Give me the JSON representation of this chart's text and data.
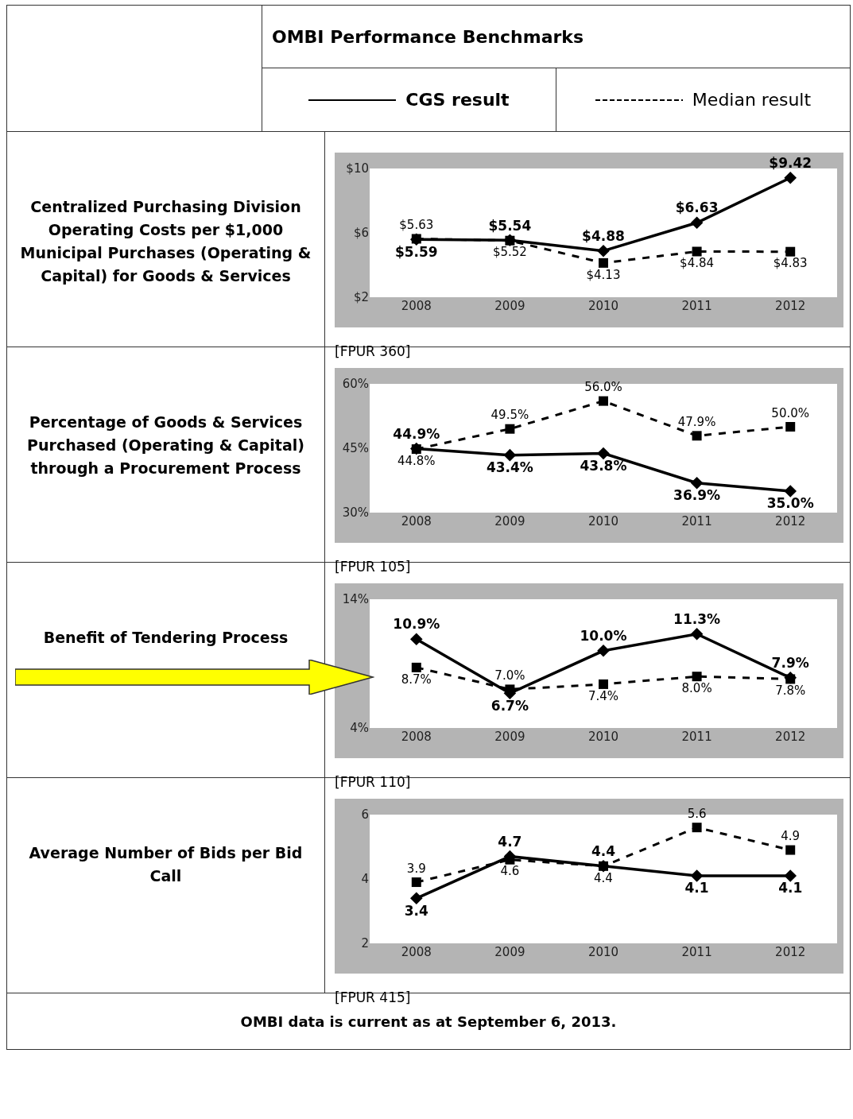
{
  "chart_data": [
    {
      "type": "line",
      "title": "Centralized Purchasing Division Operating Costs per $1,000 Municipal Purchases (Operating & Capital) for Goods & Services",
      "categories": [
        "2008",
        "2009",
        "2010",
        "2011",
        "2012"
      ],
      "series": [
        {
          "name": "CGS result",
          "color": "#000000",
          "line_style": "solid",
          "marker": "diamond",
          "values": [
            5.59,
            5.54,
            4.88,
            6.63,
            9.42
          ],
          "value_labels": [
            "$5.59",
            "$5.54",
            "$4.88",
            "$6.63",
            "$9.42"
          ]
        },
        {
          "name": "Median result",
          "color": "#000000",
          "line_style": "dashed",
          "marker": "square",
          "values": [
            5.63,
            5.52,
            4.13,
            4.84,
            4.83
          ],
          "value_labels": [
            "$5.63",
            "$5.52",
            "$4.13",
            "$4.84",
            "$4.83"
          ]
        }
      ],
      "ylim": [
        2,
        10
      ],
      "yticks": [
        {
          "value": 2,
          "label": "$2"
        },
        {
          "value": 6,
          "label": "$6"
        },
        {
          "value": 10,
          "label": "$10"
        }
      ],
      "legend": "top",
      "grid": false,
      "annotations": [
        "[FPUR 360]",
        "OMBI Performance Benchmarks"
      ]
    },
    {
      "type": "line",
      "title": "Percentage of Goods & Services Purchased (Operating & Capital) through a Procurement Process",
      "categories": [
        "2008",
        "2009",
        "2010",
        "2011",
        "2012"
      ],
      "series": [
        {
          "color": "#000000",
          "line_style": "solid",
          "marker": "diamond",
          "values": [
            44.9,
            43.4,
            43.8,
            36.9,
            35.0
          ],
          "value_labels": [
            "44.9%",
            "43.4%",
            "43.8%",
            "36.9%",
            "35.0%"
          ]
        },
        {
          "color": "#000000",
          "line_style": "dashed",
          "marker": "square",
          "values": [
            44.8,
            49.5,
            56.0,
            47.9,
            50.0
          ],
          "value_labels": [
            "44.8%",
            "49.5%",
            "56.0%",
            "47.9%",
            "50.0%"
          ]
        }
      ],
      "ylim": [
        30,
        60
      ],
      "yticks": [
        {
          "value": 30,
          "label": "30%"
        },
        {
          "value": 45,
          "label": "45%"
        },
        {
          "value": 60,
          "label": "60%"
        }
      ],
      "grid": false,
      "annotations": [
        "[FPUR 105]"
      ]
    },
    {
      "type": "line",
      "title": "Benefit of Tendering Process",
      "categories": [
        "2008",
        "2009",
        "2010",
        "2011",
        "2012"
      ],
      "series": [
        {
          "color": "#000000",
          "line_style": "solid",
          "marker": "diamond",
          "values": [
            10.9,
            6.7,
            10.0,
            11.3,
            7.9
          ],
          "value_labels": [
            "10.9%",
            "6.7%",
            "10.0%",
            "11.3%",
            "7.9%"
          ]
        },
        {
          "color": "#000000",
          "line_style": "dashed",
          "marker": "square",
          "values": [
            8.7,
            7.0,
            7.4,
            8.0,
            7.8
          ],
          "value_labels": [
            "8.7%",
            "7.0%",
            "7.4%",
            "8.0%",
            "7.8%"
          ]
        }
      ],
      "ylim": [
        4,
        14
      ],
      "yticks": [
        {
          "value": 4,
          "label": "4%"
        },
        {
          "value": 14,
          "label": "14%"
        }
      ],
      "grid": false,
      "annotations": [
        "[FPUR 110]"
      ]
    },
    {
      "type": "line",
      "title": "Average Number of Bids per Bid Call",
      "categories": [
        "2008",
        "2009",
        "2010",
        "2011",
        "2012"
      ],
      "series": [
        {
          "color": "#000000",
          "line_style": "solid",
          "marker": "diamond",
          "values": [
            3.4,
            4.7,
            4.4,
            4.1,
            4.1
          ],
          "value_labels": [
            "3.4",
            "4.7",
            "4.4",
            "4.1",
            "4.1"
          ]
        },
        {
          "color": "#000000",
          "line_style": "dashed",
          "marker": "square",
          "values": [
            3.9,
            4.6,
            4.4,
            5.6,
            4.9
          ],
          "value_labels": [
            "3.9",
            "4.6",
            "4.4",
            "5.6",
            "4.9"
          ]
        }
      ],
      "ylim": [
        2,
        6
      ],
      "yticks": [
        2,
        4,
        6
      ],
      "grid": false,
      "annotations": [
        "[FPUR 415]",
        "OMBI data is current as at September 6, 2013."
      ]
    }
  ]
}
